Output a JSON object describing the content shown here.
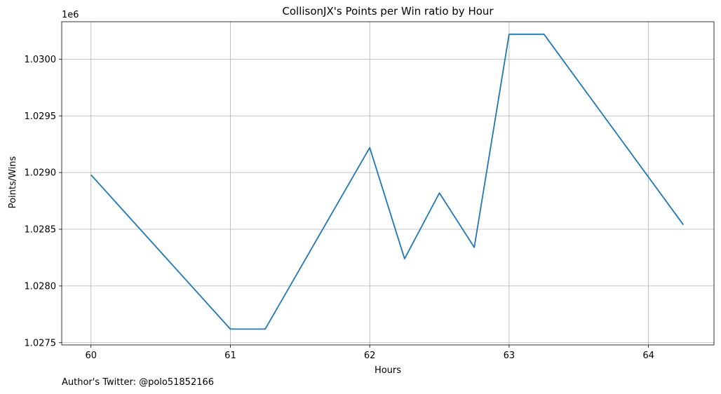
{
  "chart_data": {
    "type": "line",
    "title": "CollisonJX's Points per Win ratio by Hour",
    "xlabel": "Hours",
    "ylabel": "Points/Wins",
    "y_offset_label": "1e6",
    "xlim": [
      59.79,
      64.47
    ],
    "ylim": [
      1.02748,
      1.03033
    ],
    "x_ticks": [
      60,
      61,
      62,
      63,
      64
    ],
    "x_tick_labels": [
      "60",
      "61",
      "62",
      "63",
      "64"
    ],
    "y_ticks": [
      1.0275,
      1.028,
      1.0285,
      1.029,
      1.0295,
      1.03
    ],
    "y_tick_labels": [
      "1.0275",
      "1.0280",
      "1.0285",
      "1.0290",
      "1.0295",
      "1.0300"
    ],
    "grid": true,
    "color": "#1f77b4",
    "series": [
      {
        "x": [
          60,
          61,
          61.25,
          62,
          62.25,
          62.5,
          62.75,
          63,
          63.25,
          64.25
        ],
        "values": [
          1.02898,
          1.02762,
          1.02762,
          1.02922,
          1.02824,
          1.02882,
          1.02834,
          1.03022,
          1.03022,
          1.02854
        ]
      }
    ]
  },
  "footer": {
    "credit": "Author's Twitter: @polo51852166"
  }
}
